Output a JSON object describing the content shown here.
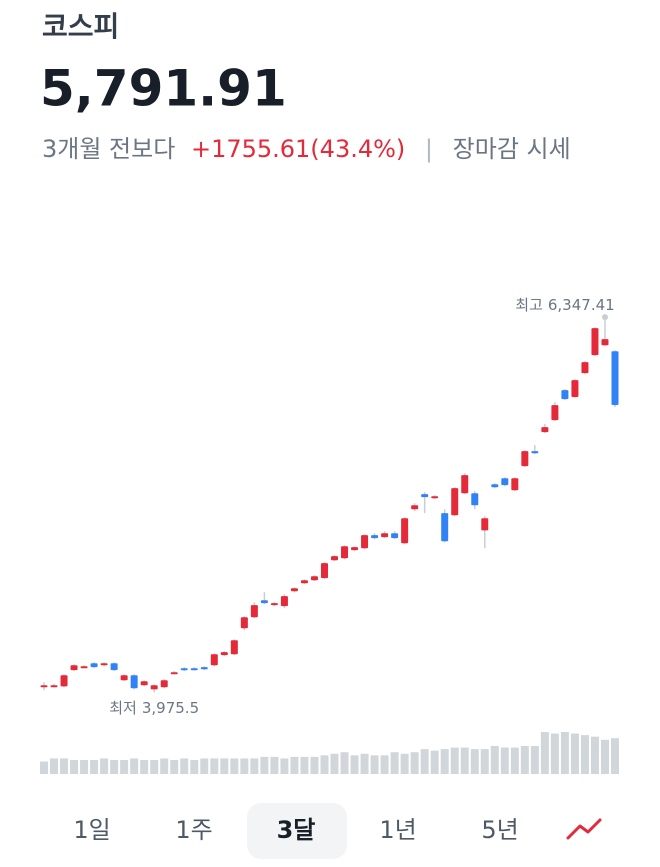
{
  "header": {
    "title": "코스피",
    "price": "5,791.91",
    "period": "3개월 전보다",
    "change": "+1755.61(43.4%)",
    "separator": "|",
    "status": "장마감 시세"
  },
  "chart_data": {
    "type": "candlestick",
    "open": [
      4007,
      4013,
      4013,
      4115,
      4134,
      4159,
      4146,
      4159,
      4051,
      4083,
      4020,
      3994,
      4007,
      4096,
      4127,
      4127,
      4134,
      4146,
      4210,
      4216,
      4380,
      4450,
      4557,
      4526,
      4520,
      4614,
      4665,
      4684,
      4697,
      4810,
      4823,
      4874,
      4886,
      4969,
      4956,
      4981,
      4918,
      5133,
      5228,
      5203,
      5108,
      5095,
      5234,
      5234,
      4999,
      5291,
      5329,
      5253,
      5405,
      5500,
      5620,
      5696,
      5886,
      5842,
      5993,
      6107,
      6170,
      6132
    ],
    "high": [
      4039,
      4030,
      4090,
      4153,
      4146,
      4165,
      4165,
      4165,
      4090,
      4090,
      4051,
      4026,
      4058,
      4109,
      4134,
      4134,
      4140,
      4222,
      4235,
      4310,
      4457,
      4545,
      4608,
      4545,
      4595,
      4640,
      4690,
      4716,
      4798,
      4842,
      4905,
      4899,
      4975,
      4981,
      4994,
      4994,
      5082,
      5171,
      5240,
      5222,
      5133,
      5272,
      5360,
      5247,
      5089,
      5297,
      5335,
      5335,
      5506,
      5538,
      5671,
      5810,
      5892,
      5955,
      6069,
      6284,
      6347.41,
      6138
    ],
    "low": [
      3988,
      4007,
      4007,
      4109,
      4127,
      4127,
      4140,
      4109,
      4045,
      3994,
      4013,
      3975.5,
      4001,
      4090,
      4109,
      4115,
      4115,
      4140,
      4203,
      4210,
      4367,
      4444,
      4532,
      4520,
      4507,
      4608,
      4659,
      4678,
      4690,
      4804,
      4817,
      4867,
      4880,
      4943,
      4950,
      4943,
      4912,
      5120,
      5108,
      5196,
      4924,
      5089,
      5228,
      5133,
      4886,
      5266,
      5278,
      5247,
      5399,
      5481,
      5614,
      5690,
      5823,
      5836,
      5987,
      6101,
      6164,
      5779
    ],
    "close": [
      4020,
      4020,
      4083,
      4146,
      4140,
      4134,
      4159,
      4115,
      4083,
      4001,
      4045,
      4020,
      4051,
      4102,
      4115,
      4121,
      4121,
      4216,
      4229,
      4304,
      4450,
      4526,
      4539,
      4539,
      4583,
      4633,
      4684,
      4709,
      4792,
      4836,
      4899,
      4893,
      4969,
      4950,
      4981,
      4950,
      5076,
      5158,
      5209,
      5215,
      4930,
      5266,
      5348,
      5158,
      5076,
      5272,
      5285,
      5329,
      5500,
      5487,
      5652,
      5791,
      5829,
      5949,
      6063,
      6278,
      6208,
      5791.91
    ],
    "volume": [
      8,
      10,
      10,
      9,
      9,
      9,
      10,
      9,
      9,
      10,
      9,
      9,
      10,
      9,
      10,
      9,
      10,
      10,
      10,
      10,
      10,
      10,
      11,
      11,
      10,
      11,
      11,
      11,
      12,
      13,
      14,
      12,
      13,
      12,
      12,
      14,
      13,
      14,
      16,
      15,
      16,
      17,
      17,
      16,
      16,
      18,
      17,
      17,
      18,
      18,
      27,
      26,
      27,
      26,
      25,
      24,
      22,
      23
    ],
    "ylim": [
      3800,
      6500
    ],
    "up_color": "#e42939",
    "down_color": "#3182f6",
    "volume_color": "#d1d6db",
    "high_note": {
      "text": "최고",
      "value": 6347.41,
      "label": "6,347.41"
    },
    "low_note": {
      "text": "최저",
      "value": 3975.5,
      "label": "3,975.5"
    }
  },
  "tabs": {
    "items": [
      "1일",
      "1주",
      "3달",
      "1년",
      "5년"
    ],
    "selected": 2
  }
}
